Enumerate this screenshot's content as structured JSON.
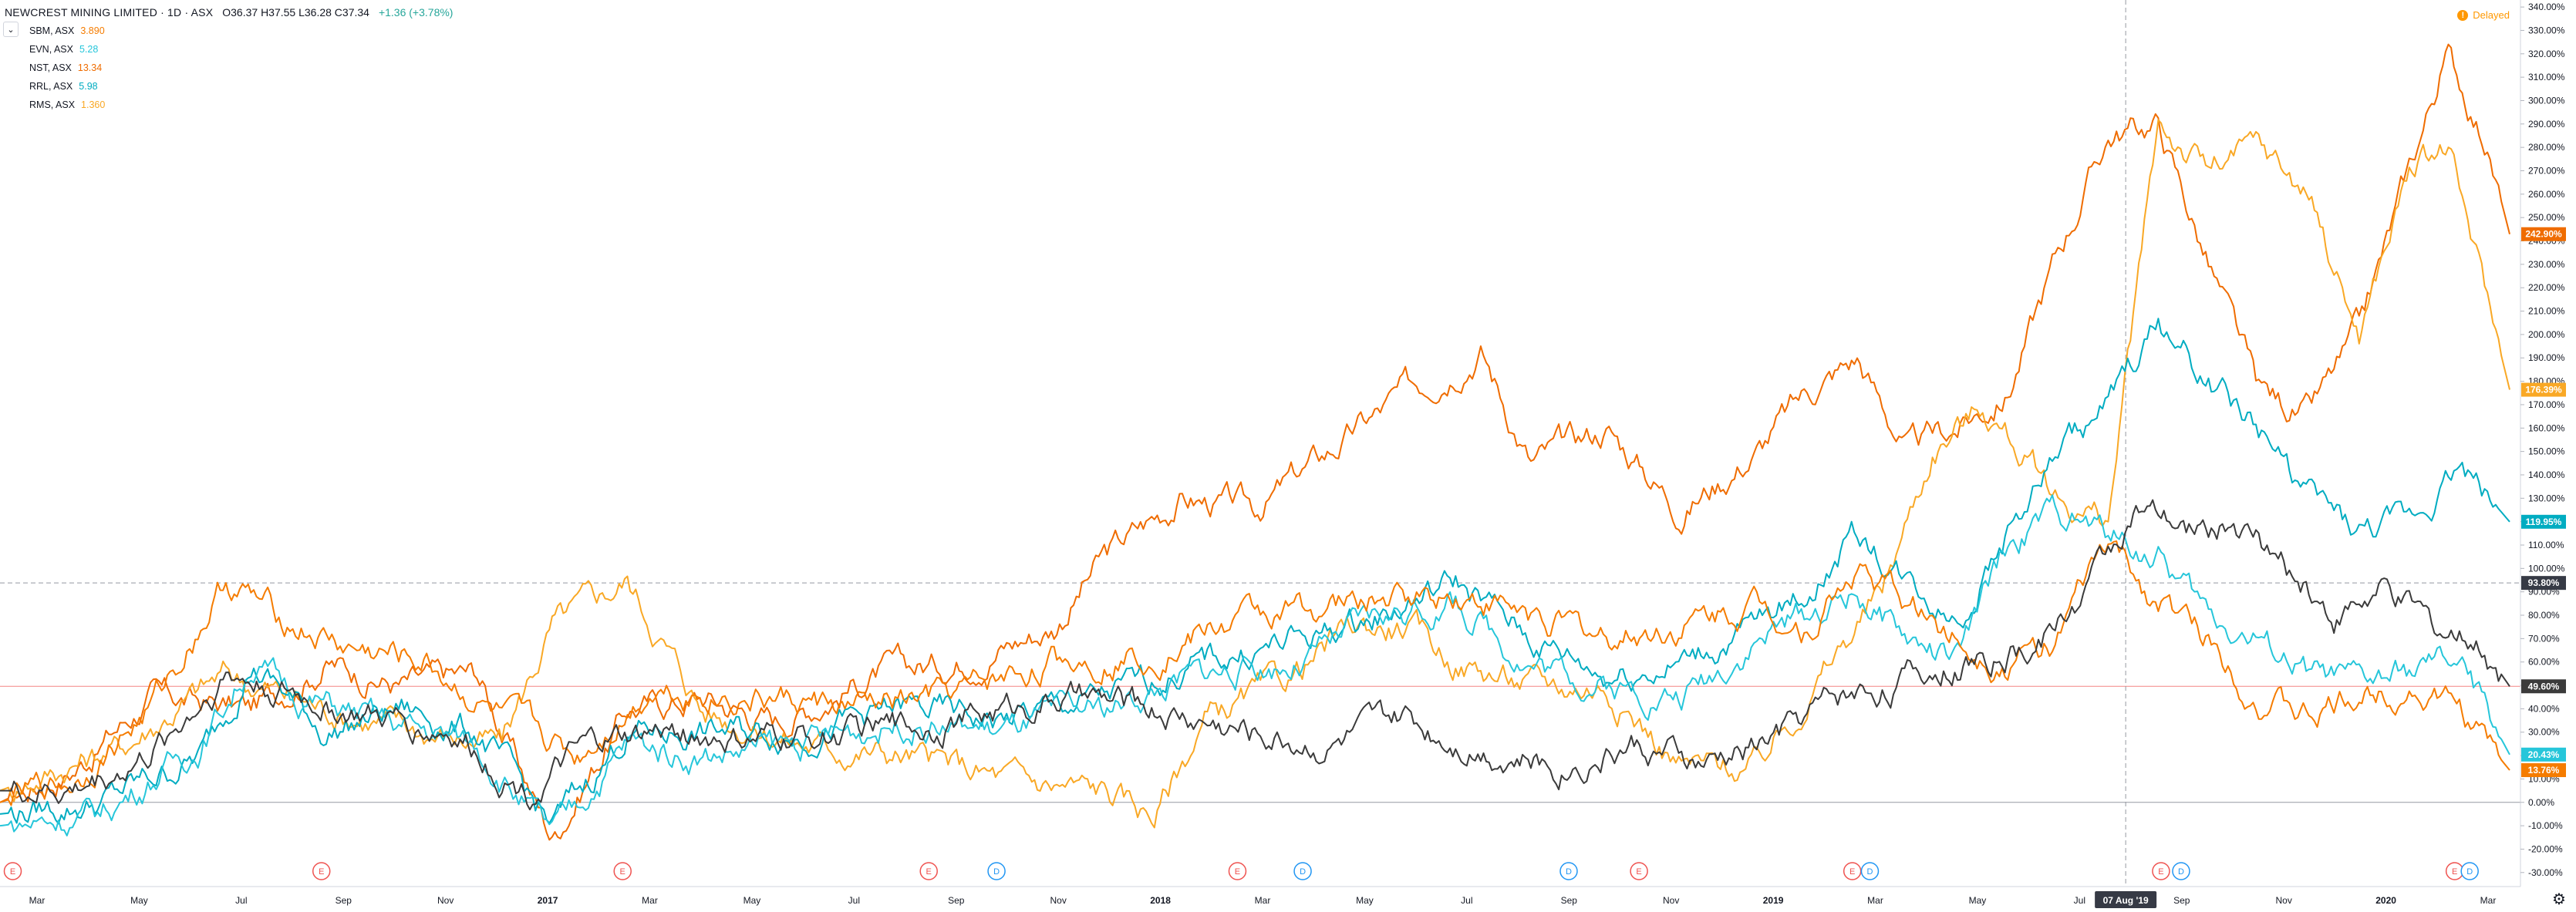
{
  "header": {
    "title": "NEWCREST MINING LIMITED · 1D · ASX",
    "ohlc": "O36.37 H37.55 L36.28 C37.34",
    "change": "+1.36 (+3.78%)"
  },
  "legend": [
    {
      "name": "SBM, ASX",
      "value": "3.890",
      "color": "#f57c00"
    },
    {
      "name": "EVN, ASX",
      "value": "5.28",
      "color": "#26c6da"
    },
    {
      "name": "NST, ASX",
      "value": "13.34",
      "color": "#ef6c00"
    },
    {
      "name": "RRL, ASX",
      "value": "5.98",
      "color": "#00acc1"
    },
    {
      "name": "RMS, ASX",
      "value": "1.360",
      "color": "#f9a825"
    }
  ],
  "delayed_label": "Delayed",
  "delayed_icon": "!",
  "crosshair_date": "07 Aug '19",
  "crosshair_value": "93.80%",
  "chart_data": {
    "type": "line",
    "x_labels": [
      "Mar",
      "May",
      "Jul",
      "Sep",
      "Nov",
      "2017",
      "Mar",
      "May",
      "Jul",
      "Sep",
      "Nov",
      "2018",
      "Mar",
      "May",
      "Jul",
      "Sep",
      "Nov",
      "2019",
      "Mar",
      "May",
      "Jul",
      "Sep",
      "Nov",
      "2020",
      "Mar"
    ],
    "y_ticks": [
      "340.00%",
      "330.00%",
      "320.00%",
      "310.00%",
      "300.00%",
      "290.00%",
      "280.00%",
      "270.00%",
      "260.00%",
      "250.00%",
      "240.00%",
      "230.00%",
      "220.00%",
      "210.00%",
      "200.00%",
      "190.00%",
      "180.00%",
      "170.00%",
      "160.00%",
      "150.00%",
      "140.00%",
      "130.00%",
      "120.00%",
      "110.00%",
      "100.00%",
      "90.00%",
      "80.00%",
      "70.00%",
      "60.00%",
      "50.00%",
      "40.00%",
      "30.00%",
      "20.00%",
      "10.00%",
      "0.00%",
      "-10.00%",
      "-20.00%",
      "-30.00%"
    ],
    "ylim": [
      -36,
      343
    ],
    "price_line_value": 49.6,
    "crosshair_y_value": 93.8,
    "series": [
      {
        "name": "NST, ASX",
        "color": "#ef6c00",
        "label": "242.90%",
        "last": 242.9,
        "points": [
          [
            0,
            0
          ],
          [
            0.03,
            15
          ],
          [
            0.06,
            45
          ],
          [
            0.1,
            40
          ],
          [
            0.13,
            60
          ],
          [
            0.16,
            50
          ],
          [
            0.19,
            55
          ],
          [
            0.22,
            -15
          ],
          [
            0.25,
            40
          ],
          [
            0.28,
            45
          ],
          [
            0.31,
            35
          ],
          [
            0.35,
            55
          ],
          [
            0.38,
            60
          ],
          [
            0.42,
            75
          ],
          [
            0.44,
            105
          ],
          [
            0.47,
            130
          ],
          [
            0.5,
            125
          ],
          [
            0.53,
            150
          ],
          [
            0.56,
            175
          ],
          [
            0.59,
            195
          ],
          [
            0.61,
            145
          ],
          [
            0.64,
            160
          ],
          [
            0.67,
            125
          ],
          [
            0.7,
            150
          ],
          [
            0.72,
            175
          ],
          [
            0.74,
            190
          ],
          [
            0.76,
            150
          ],
          [
            0.78,
            160
          ],
          [
            0.8,
            175
          ],
          [
            0.82,
            235
          ],
          [
            0.84,
            285
          ],
          [
            0.86,
            290
          ],
          [
            0.88,
            230
          ],
          [
            0.9,
            175
          ],
          [
            0.92,
            165
          ],
          [
            0.94,
            200
          ],
          [
            0.96,
            270
          ],
          [
            0.975,
            320
          ],
          [
            0.99,
            285
          ],
          [
            1,
            242.9
          ]
        ]
      },
      {
        "name": "RMS, ASX",
        "color": "#f9a825",
        "label": "176.39%",
        "last": 176.39,
        "points": [
          [
            0,
            5
          ],
          [
            0.05,
            25
          ],
          [
            0.09,
            55
          ],
          [
            0.13,
            40
          ],
          [
            0.17,
            30
          ],
          [
            0.2,
            25
          ],
          [
            0.22,
            75
          ],
          [
            0.25,
            95
          ],
          [
            0.28,
            40
          ],
          [
            0.32,
            25
          ],
          [
            0.36,
            20
          ],
          [
            0.4,
            10
          ],
          [
            0.44,
            5
          ],
          [
            0.46,
            -5
          ],
          [
            0.48,
            35
          ],
          [
            0.51,
            50
          ],
          [
            0.54,
            75
          ],
          [
            0.56,
            75
          ],
          [
            0.58,
            60
          ],
          [
            0.61,
            50
          ],
          [
            0.64,
            50
          ],
          [
            0.67,
            15
          ],
          [
            0.7,
            15
          ],
          [
            0.72,
            45
          ],
          [
            0.75,
            90
          ],
          [
            0.77,
            150
          ],
          [
            0.79,
            170
          ],
          [
            0.82,
            130
          ],
          [
            0.84,
            120
          ],
          [
            0.86,
            290
          ],
          [
            0.88,
            270
          ],
          [
            0.9,
            280
          ],
          [
            0.92,
            260
          ],
          [
            0.94,
            200
          ],
          [
            0.96,
            270
          ],
          [
            0.975,
            280
          ],
          [
            0.99,
            220
          ],
          [
            1,
            176.39
          ]
        ]
      },
      {
        "name": "RRL, ASX",
        "color": "#00acc1",
        "label": "119.95%",
        "last": 119.95,
        "points": [
          [
            0,
            -5
          ],
          [
            0.04,
            0
          ],
          [
            0.08,
            20
          ],
          [
            0.1,
            60
          ],
          [
            0.13,
            30
          ],
          [
            0.16,
            40
          ],
          [
            0.19,
            30
          ],
          [
            0.22,
            -10
          ],
          [
            0.25,
            30
          ],
          [
            0.28,
            30
          ],
          [
            0.32,
            30
          ],
          [
            0.36,
            40
          ],
          [
            0.4,
            35
          ],
          [
            0.44,
            45
          ],
          [
            0.48,
            60
          ],
          [
            0.52,
            70
          ],
          [
            0.55,
            80
          ],
          [
            0.58,
            95
          ],
          [
            0.61,
            70
          ],
          [
            0.64,
            55
          ],
          [
            0.67,
            60
          ],
          [
            0.7,
            75
          ],
          [
            0.72,
            90
          ],
          [
            0.74,
            115
          ],
          [
            0.76,
            95
          ],
          [
            0.78,
            80
          ],
          [
            0.8,
            115
          ],
          [
            0.82,
            150
          ],
          [
            0.84,
            170
          ],
          [
            0.86,
            205
          ],
          [
            0.88,
            180
          ],
          [
            0.9,
            160
          ],
          [
            0.92,
            130
          ],
          [
            0.94,
            115
          ],
          [
            0.96,
            120
          ],
          [
            0.98,
            145
          ],
          [
            1,
            119.95
          ]
        ]
      },
      {
        "name": "EVN, ASX",
        "color": "#26c6da",
        "label": "20.43%",
        "last": 20.43,
        "points": [
          [
            0,
            -10
          ],
          [
            0.04,
            -5
          ],
          [
            0.08,
            25
          ],
          [
            0.1,
            60
          ],
          [
            0.12,
            45
          ],
          [
            0.15,
            35
          ],
          [
            0.19,
            25
          ],
          [
            0.22,
            -15
          ],
          [
            0.25,
            25
          ],
          [
            0.28,
            20
          ],
          [
            0.32,
            25
          ],
          [
            0.36,
            35
          ],
          [
            0.4,
            30
          ],
          [
            0.44,
            40
          ],
          [
            0.48,
            55
          ],
          [
            0.52,
            60
          ],
          [
            0.55,
            80
          ],
          [
            0.58,
            85
          ],
          [
            0.61,
            60
          ],
          [
            0.64,
            50
          ],
          [
            0.67,
            45
          ],
          [
            0.7,
            70
          ],
          [
            0.72,
            80
          ],
          [
            0.74,
            90
          ],
          [
            0.76,
            70
          ],
          [
            0.78,
            60
          ],
          [
            0.8,
            110
          ],
          [
            0.82,
            125
          ],
          [
            0.84,
            115
          ],
          [
            0.86,
            105
          ],
          [
            0.88,
            80
          ],
          [
            0.9,
            70
          ],
          [
            0.92,
            55
          ],
          [
            0.94,
            50
          ],
          [
            0.96,
            55
          ],
          [
            0.98,
            60
          ],
          [
            1,
            20.43
          ]
        ]
      },
      {
        "name": "SBM, ASX",
        "color": "#f57c00",
        "label": "13.76%",
        "last": 13.76,
        "points": [
          [
            0,
            0
          ],
          [
            0.03,
            10
          ],
          [
            0.06,
            40
          ],
          [
            0.09,
            95
          ],
          [
            0.11,
            80
          ],
          [
            0.14,
            65
          ],
          [
            0.17,
            60
          ],
          [
            0.2,
            35
          ],
          [
            0.23,
            20
          ],
          [
            0.26,
            50
          ],
          [
            0.3,
            45
          ],
          [
            0.34,
            40
          ],
          [
            0.38,
            45
          ],
          [
            0.42,
            60
          ],
          [
            0.46,
            65
          ],
          [
            0.5,
            80
          ],
          [
            0.54,
            85
          ],
          [
            0.58,
            90
          ],
          [
            0.61,
            80
          ],
          [
            0.64,
            70
          ],
          [
            0.67,
            75
          ],
          [
            0.7,
            85
          ],
          [
            0.72,
            75
          ],
          [
            0.74,
            100
          ],
          [
            0.76,
            85
          ],
          [
            0.78,
            70
          ],
          [
            0.8,
            60
          ],
          [
            0.82,
            70
          ],
          [
            0.84,
            110
          ],
          [
            0.86,
            85
          ],
          [
            0.88,
            70
          ],
          [
            0.9,
            45
          ],
          [
            0.92,
            35
          ],
          [
            0.94,
            45
          ],
          [
            0.96,
            50
          ],
          [
            0.98,
            40
          ],
          [
            1,
            13.76
          ]
        ]
      },
      {
        "name": "NEWCREST MINING LIMITED",
        "color": "#3b3b3b",
        "label": "49.60%",
        "last": 49.6,
        "points": [
          [
            0,
            5
          ],
          [
            0.03,
            5
          ],
          [
            0.06,
            20
          ],
          [
            0.09,
            55
          ],
          [
            0.12,
            45
          ],
          [
            0.15,
            35
          ],
          [
            0.18,
            30
          ],
          [
            0.21,
            5
          ],
          [
            0.24,
            25
          ],
          [
            0.27,
            30
          ],
          [
            0.3,
            25
          ],
          [
            0.34,
            30
          ],
          [
            0.38,
            35
          ],
          [
            0.42,
            45
          ],
          [
            0.46,
            40
          ],
          [
            0.5,
            30
          ],
          [
            0.53,
            25
          ],
          [
            0.56,
            35
          ],
          [
            0.59,
            25
          ],
          [
            0.62,
            15
          ],
          [
            0.65,
            25
          ],
          [
            0.68,
            15
          ],
          [
            0.71,
            30
          ],
          [
            0.73,
            45
          ],
          [
            0.75,
            50
          ],
          [
            0.78,
            60
          ],
          [
            0.81,
            65
          ],
          [
            0.83,
            90
          ],
          [
            0.85,
            125
          ],
          [
            0.87,
            115
          ],
          [
            0.89,
            120
          ],
          [
            0.91,
            100
          ],
          [
            0.93,
            80
          ],
          [
            0.95,
            90
          ],
          [
            0.97,
            75
          ],
          [
            0.99,
            65
          ],
          [
            1,
            49.6
          ]
        ]
      }
    ],
    "events": [
      {
        "x": 0.002,
        "type": "E"
      },
      {
        "x": 0.125,
        "type": "E"
      },
      {
        "x": 0.245,
        "type": "E"
      },
      {
        "x": 0.367,
        "type": "E"
      },
      {
        "x": 0.394,
        "type": "D"
      },
      {
        "x": 0.49,
        "type": "E"
      },
      {
        "x": 0.516,
        "type": "D"
      },
      {
        "x": 0.622,
        "type": "D"
      },
      {
        "x": 0.65,
        "type": "E"
      },
      {
        "x": 0.735,
        "type": "E"
      },
      {
        "x": 0.742,
        "type": "D"
      },
      {
        "x": 0.858,
        "type": "E"
      },
      {
        "x": 0.866,
        "type": "D"
      },
      {
        "x": 0.975,
        "type": "E"
      },
      {
        "x": 0.981,
        "type": "D"
      }
    ]
  }
}
